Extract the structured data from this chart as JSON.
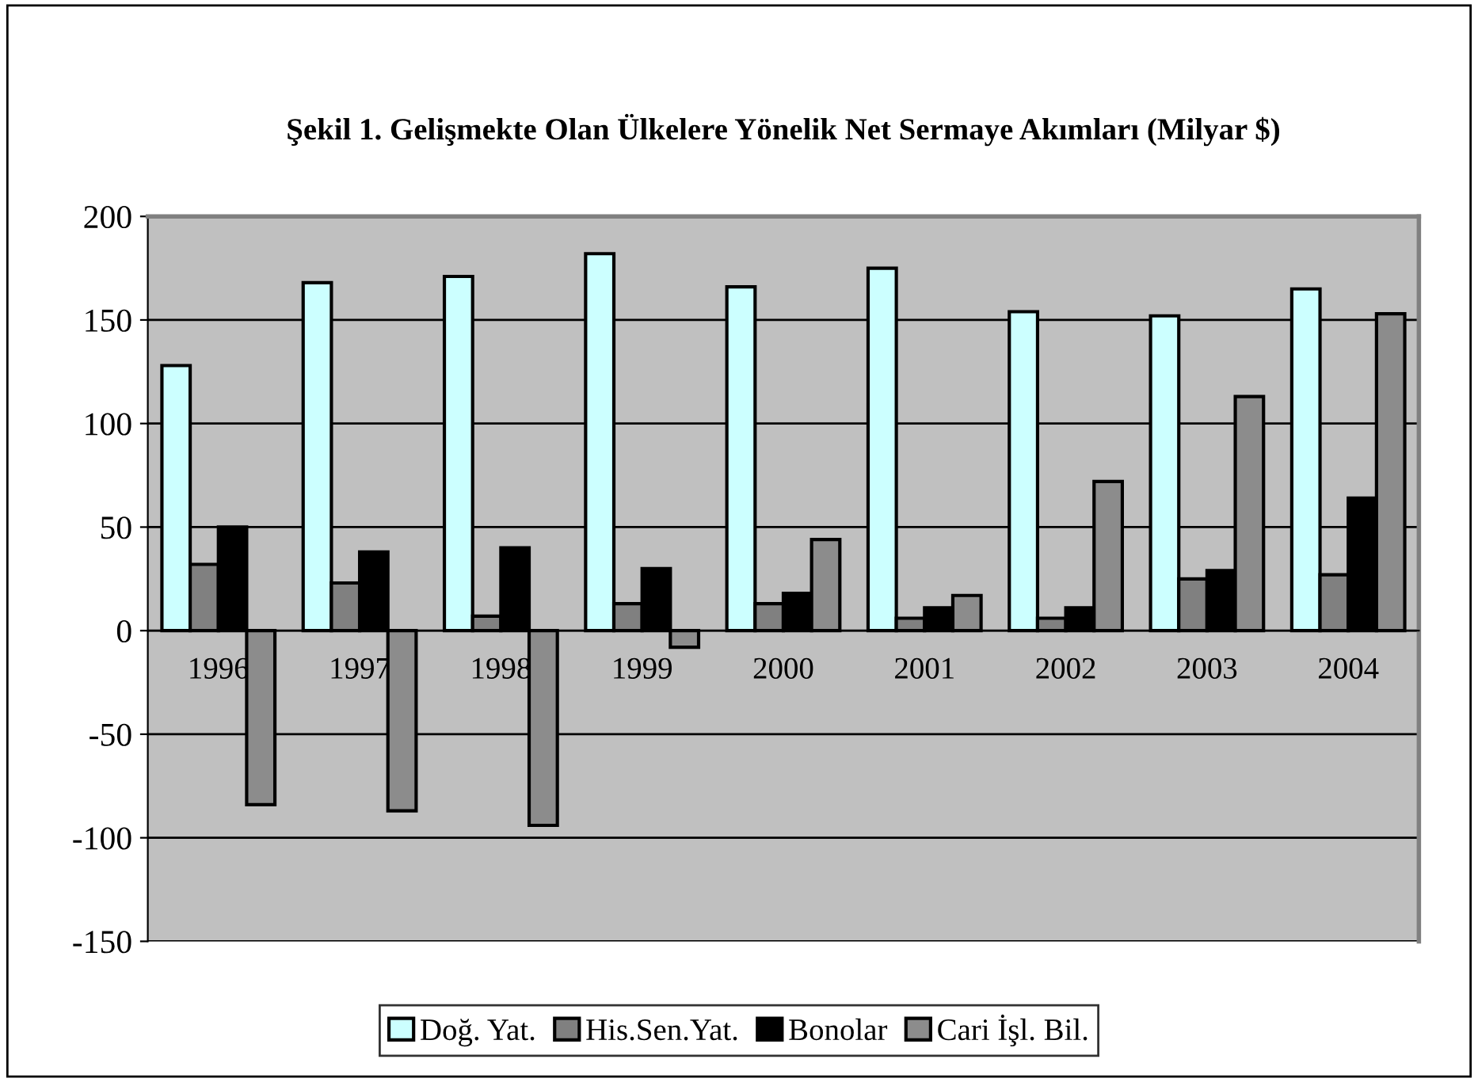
{
  "chart_data": {
    "type": "bar",
    "title": "Şekil 1. Gelişmekte Olan Ülkelere Yönelik Net Sermaye Akımları (Milyar $)",
    "categories": [
      "1996",
      "1997",
      "1998",
      "1999",
      "2000",
      "2001",
      "2002",
      "2003",
      "2004"
    ],
    "series": [
      {
        "name": "Doğ. Yat.",
        "color": "#ccffff",
        "values": [
          128,
          168,
          171,
          182,
          166,
          175,
          154,
          152,
          165
        ]
      },
      {
        "name": "His.Sen.Yat.",
        "color": "#808080",
        "values": [
          32,
          23,
          7,
          13,
          13,
          6,
          6,
          25,
          27
        ]
      },
      {
        "name": "Bonolar",
        "color": "#000000",
        "values": [
          50,
          38,
          40,
          30,
          18,
          11,
          11,
          29,
          64
        ]
      },
      {
        "name": "Cari İşl. Bil.",
        "color": "#8c8c8c",
        "values": [
          -84,
          -87,
          -94,
          -8,
          44,
          17,
          72,
          113,
          153
        ]
      }
    ],
    "ylim": [
      -150,
      200
    ],
    "yticks": [
      -150,
      -100,
      -50,
      0,
      50,
      100,
      150,
      200
    ],
    "grid": "y",
    "legend": "bottom"
  }
}
